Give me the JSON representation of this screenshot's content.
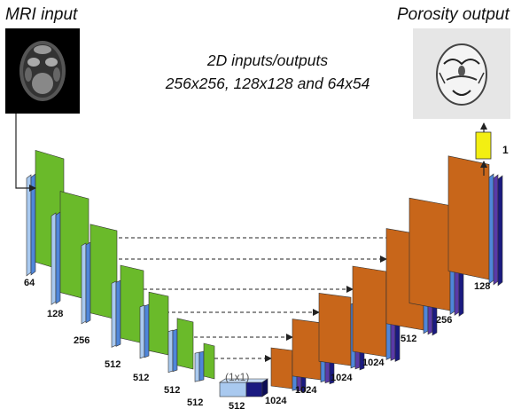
{
  "input": {
    "label": "MRI input"
  },
  "output": {
    "label": "Porosity output"
  },
  "caption": {
    "line1": "2D inputs/outputs",
    "line2": "256x256, 128x128 and 64x54"
  },
  "output_channels": "1",
  "encoder_labels": [
    "64",
    "128",
    "256",
    "512",
    "512",
    "512",
    "512"
  ],
  "bottleneck": {
    "note": "(1x1)",
    "label": "512"
  },
  "decoder_labels": [
    "1024",
    "1024",
    "1024",
    "1024",
    "512",
    "256",
    "128"
  ],
  "colors": {
    "encoder_face": "#6aba2a",
    "encoder_side": "#4a8c1a",
    "decoder_face": "#c8661a",
    "decoder_side": "#8a4010",
    "stripe_blue": "#4f86d9",
    "stripe_purple": "#5a3aa8",
    "stripe_navy": "#1a1a80",
    "stripe_light": "#a9c9ef",
    "output_box": "#f3ef12",
    "arrow": "#222222"
  }
}
